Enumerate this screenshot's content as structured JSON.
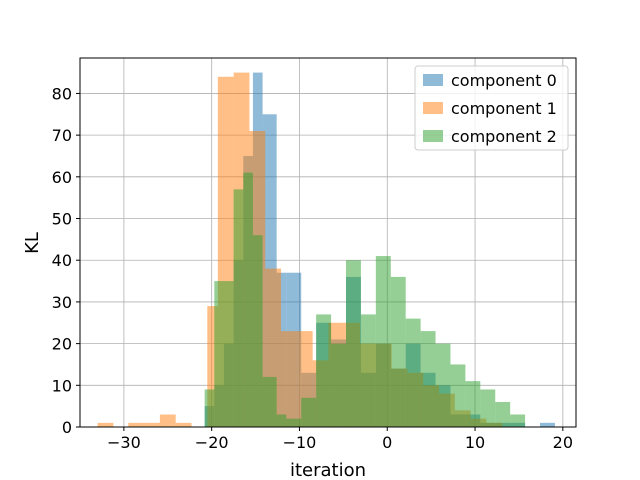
{
  "chart_data": {
    "type": "bar",
    "title": "",
    "xlabel": "iteration",
    "ylabel": "KL",
    "xlim": [
      -35,
      21.5
    ],
    "ylim": [
      0,
      88.5
    ],
    "xticks": [
      -30,
      -20,
      -10,
      0,
      10,
      20
    ],
    "yticks": [
      0,
      10,
      20,
      30,
      40,
      50,
      60,
      70,
      80
    ],
    "grid": true,
    "legend_position": "top-right",
    "series": [
      {
        "name": "component 0",
        "color": "#1f77b4",
        "bars": [
          {
            "x0": -20.8,
            "x1": -19.7,
            "value": 5
          },
          {
            "x0": -19.7,
            "x1": -18.6,
            "value": 10
          },
          {
            "x0": -18.6,
            "x1": -17.5,
            "value": 20
          },
          {
            "x0": -17.5,
            "x1": -16.4,
            "value": 40
          },
          {
            "x0": -16.4,
            "x1": -15.3,
            "value": 65
          },
          {
            "x0": -15.3,
            "x1": -14.2,
            "value": 85
          },
          {
            "x0": -14.2,
            "x1": -12.6,
            "value": 75
          },
          {
            "x0": -12.6,
            "x1": -11.5,
            "value": 37
          },
          {
            "x0": -11.5,
            "x1": -9.8,
            "value": 37
          },
          {
            "x0": -9.8,
            "x1": -8.1,
            "value": 13
          },
          {
            "x0": -8.1,
            "x1": -6.4,
            "value": 25
          },
          {
            "x0": -6.4,
            "x1": -4.7,
            "value": 21
          },
          {
            "x0": -4.7,
            "x1": -3.0,
            "value": 36
          },
          {
            "x0": -3.0,
            "x1": -1.3,
            "value": 13
          },
          {
            "x0": -1.3,
            "x1": 0.4,
            "value": 20
          },
          {
            "x0": 0.4,
            "x1": 2.1,
            "value": 14
          },
          {
            "x0": 2.1,
            "x1": 3.8,
            "value": 20
          },
          {
            "x0": 3.8,
            "x1": 5.5,
            "value": 13
          },
          {
            "x0": 5.5,
            "x1": 7.2,
            "value": 10
          },
          {
            "x0": 7.2,
            "x1": 8.9,
            "value": 3
          },
          {
            "x0": 8.9,
            "x1": 10.6,
            "value": 3
          },
          {
            "x0": 10.6,
            "x1": 12.3,
            "value": 1
          },
          {
            "x0": 12.3,
            "x1": 15.7,
            "value": 1
          },
          {
            "x0": 17.4,
            "x1": 19.1,
            "value": 1
          }
        ]
      },
      {
        "name": "component 1",
        "color": "#ff7f0e",
        "bars": [
          {
            "x0": -33.0,
            "x1": -31.2,
            "value": 1
          },
          {
            "x0": -29.5,
            "x1": -27.7,
            "value": 1
          },
          {
            "x0": -27.7,
            "x1": -25.9,
            "value": 1
          },
          {
            "x0": -25.9,
            "x1": -24.1,
            "value": 3
          },
          {
            "x0": -24.1,
            "x1": -22.3,
            "value": 1
          },
          {
            "x0": -20.5,
            "x1": -19.3,
            "value": 29
          },
          {
            "x0": -19.3,
            "x1": -17.5,
            "value": 84
          },
          {
            "x0": -17.5,
            "x1": -15.7,
            "value": 85
          },
          {
            "x0": -15.7,
            "x1": -13.9,
            "value": 71
          },
          {
            "x0": -13.9,
            "x1": -12.1,
            "value": 38
          },
          {
            "x0": -12.1,
            "x1": -10.3,
            "value": 23
          },
          {
            "x0": -10.3,
            "x1": -8.5,
            "value": 23
          },
          {
            "x0": -8.5,
            "x1": -6.7,
            "value": 16
          },
          {
            "x0": -6.7,
            "x1": -4.9,
            "value": 25
          },
          {
            "x0": -4.9,
            "x1": -3.1,
            "value": 25
          },
          {
            "x0": -3.1,
            "x1": -1.3,
            "value": 20
          },
          {
            "x0": -1.3,
            "x1": 0.5,
            "value": 20
          },
          {
            "x0": 0.5,
            "x1": 2.3,
            "value": 14
          },
          {
            "x0": 2.3,
            "x1": 4.1,
            "value": 13
          },
          {
            "x0": 4.1,
            "x1": 5.9,
            "value": 10
          },
          {
            "x0": 5.9,
            "x1": 7.7,
            "value": 8
          },
          {
            "x0": 7.7,
            "x1": 9.5,
            "value": 4
          },
          {
            "x0": 9.5,
            "x1": 11.3,
            "value": 2
          },
          {
            "x0": 11.3,
            "x1": 13.1,
            "value": 1
          }
        ]
      },
      {
        "name": "component 2",
        "color": "#2ca02c",
        "bars": [
          {
            "x0": -20.8,
            "x1": -19.7,
            "value": 9
          },
          {
            "x0": -19.7,
            "x1": -18.6,
            "value": 35
          },
          {
            "x0": -18.6,
            "x1": -17.5,
            "value": 35
          },
          {
            "x0": -17.5,
            "x1": -16.4,
            "value": 57
          },
          {
            "x0": -16.4,
            "x1": -15.3,
            "value": 61
          },
          {
            "x0": -15.3,
            "x1": -14.2,
            "value": 46
          },
          {
            "x0": -14.2,
            "x1": -12.6,
            "value": 12
          },
          {
            "x0": -12.6,
            "x1": -11.5,
            "value": 3
          },
          {
            "x0": -11.5,
            "x1": -9.8,
            "value": 2
          },
          {
            "x0": -9.8,
            "x1": -8.1,
            "value": 7
          },
          {
            "x0": -8.1,
            "x1": -6.4,
            "value": 27
          },
          {
            "x0": -6.4,
            "x1": -4.7,
            "value": 20
          },
          {
            "x0": -4.7,
            "x1": -3.0,
            "value": 40
          },
          {
            "x0": -3.0,
            "x1": -1.3,
            "value": 27
          },
          {
            "x0": -1.3,
            "x1": 0.4,
            "value": 41
          },
          {
            "x0": 0.4,
            "x1": 2.1,
            "value": 36
          },
          {
            "x0": 2.1,
            "x1": 3.8,
            "value": 26
          },
          {
            "x0": 3.8,
            "x1": 5.5,
            "value": 23
          },
          {
            "x0": 5.5,
            "x1": 7.2,
            "value": 20
          },
          {
            "x0": 7.2,
            "x1": 8.9,
            "value": 15
          },
          {
            "x0": 8.9,
            "x1": 10.6,
            "value": 11
          },
          {
            "x0": 10.6,
            "x1": 12.3,
            "value": 9
          },
          {
            "x0": 12.3,
            "x1": 14.0,
            "value": 6
          },
          {
            "x0": 14.0,
            "x1": 15.7,
            "value": 3
          }
        ]
      }
    ]
  }
}
